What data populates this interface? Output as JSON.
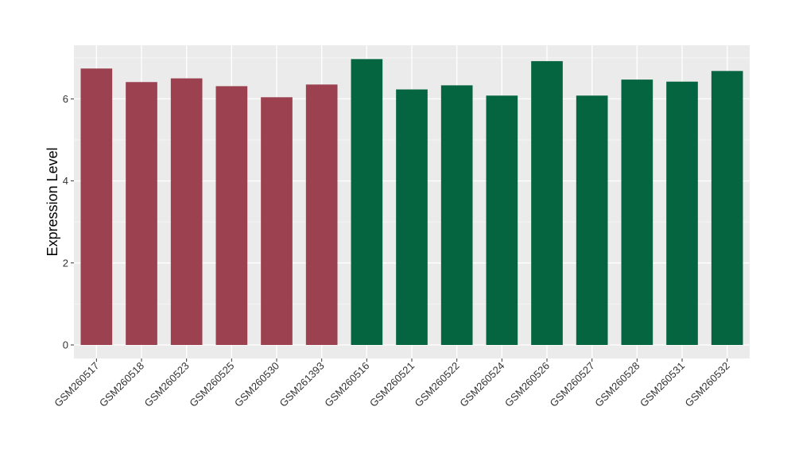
{
  "chart_data": {
    "type": "bar",
    "title": "",
    "xlabel": "",
    "ylabel": "Expression Level",
    "ylim": [
      0,
      7.3
    ],
    "yticks": [
      0,
      2,
      4,
      6
    ],
    "grid": true,
    "background_color": "#ebebeb",
    "categories": [
      "GSM260517",
      "GSM260518",
      "GSM260523",
      "GSM260525",
      "GSM260530",
      "GSM261393",
      "GSM260516",
      "GSM260521",
      "GSM260522",
      "GSM260524",
      "GSM260526",
      "GSM260527",
      "GSM260528",
      "GSM260531",
      "GSM260532"
    ],
    "values": [
      6.74,
      6.41,
      6.5,
      6.31,
      6.04,
      6.35,
      6.97,
      6.23,
      6.33,
      6.08,
      6.92,
      6.08,
      6.47,
      6.42,
      6.68
    ],
    "groups": [
      "a",
      "a",
      "a",
      "a",
      "a",
      "a",
      "b",
      "b",
      "b",
      "b",
      "b",
      "b",
      "b",
      "b",
      "b"
    ],
    "group_colors": {
      "a": "#9b4150",
      "b": "#056540"
    }
  }
}
